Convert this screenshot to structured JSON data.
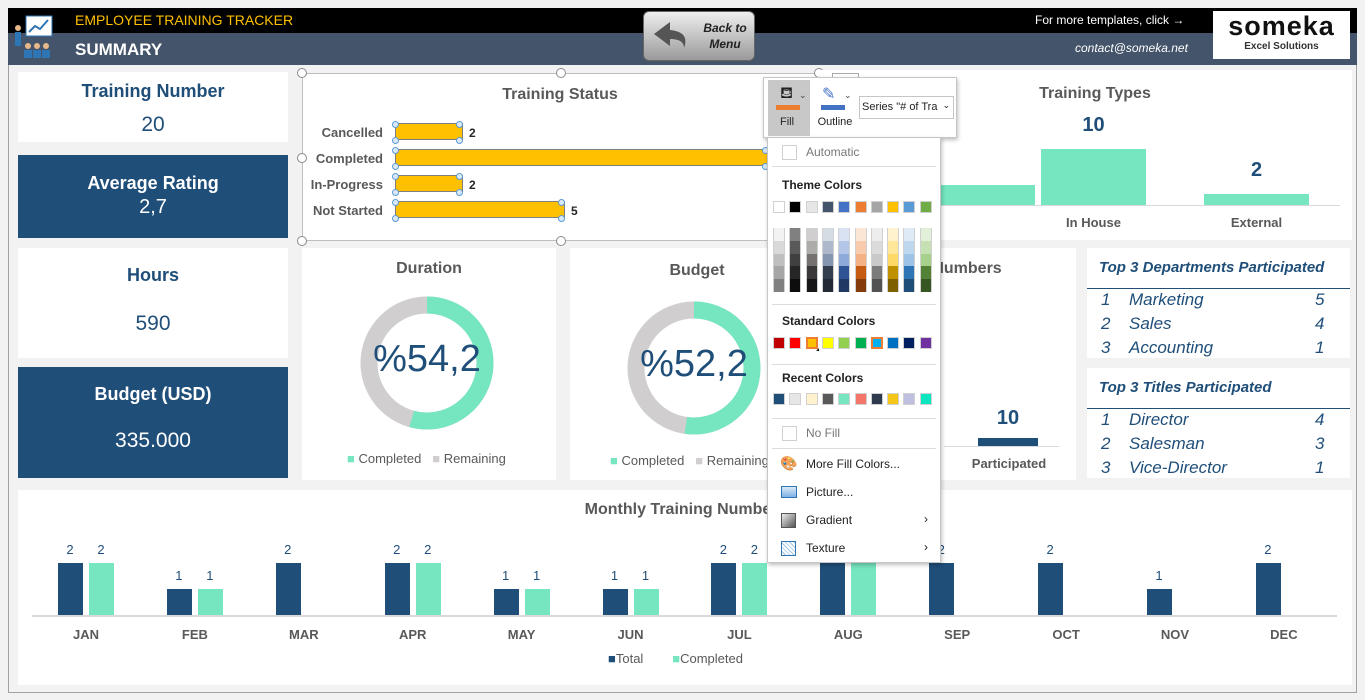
{
  "header": {
    "app_title": "EMPLOYEE TRAINING TRACKER",
    "page_title": "SUMMARY",
    "back_button": [
      "Back to",
      "Menu"
    ],
    "more_templates": "For more templates, click →",
    "contact": "contact@someka.net",
    "logo_text": "someka",
    "logo_sub": "Excel Solutions"
  },
  "kpis": {
    "training_number": {
      "label": "Training Number",
      "value": "20"
    },
    "average_rating": {
      "label": "Average Rating",
      "value": "2,7"
    },
    "hours": {
      "label": "Hours",
      "value": "590"
    },
    "budget": {
      "label": "Budget (USD)",
      "value": "335.000"
    }
  },
  "chart_data": [
    {
      "type": "bar",
      "orientation": "horizontal",
      "title": "Training Status",
      "categories": [
        "Cancelled",
        "Completed",
        "In-Progress",
        "Not Started"
      ],
      "values": [
        2,
        11,
        2,
        5
      ],
      "labels": [
        "2",
        "",
        "2",
        "5"
      ],
      "color": "#ffc000"
    },
    {
      "type": "bar",
      "title": "Training Types",
      "categories": [
        "",
        "In House",
        "External"
      ],
      "values": [
        null,
        10,
        2
      ],
      "labels": [
        "",
        "10",
        "2"
      ],
      "color": "#75e6bf"
    },
    {
      "type": "pie",
      "variant": "donut",
      "title": "Duration",
      "center_label": "%54,2",
      "values": [
        54.2,
        45.8
      ],
      "legend": [
        "Completed",
        "Remaining"
      ],
      "colors": [
        "#75e6bf",
        "#d0cece"
      ]
    },
    {
      "type": "pie",
      "variant": "donut",
      "title": "Budget",
      "center_label": "%52,2",
      "values": [
        52.2,
        47.8
      ],
      "legend": [
        "Completed",
        "Remaining"
      ],
      "colors": [
        "#75e6bf",
        "#d0cece"
      ]
    },
    {
      "type": "bar",
      "title": "e Numbers",
      "categories": [
        "Participated"
      ],
      "values": [
        10
      ],
      "labels": [
        "10"
      ],
      "color": "#1f4e79"
    },
    {
      "type": "bar",
      "title": "Monthly Training Numbe",
      "categories": [
        "JAN",
        "FEB",
        "MAR",
        "APR",
        "MAY",
        "JUN",
        "JUL",
        "AUG",
        "SEP",
        "OCT",
        "NOV",
        "DEC"
      ],
      "series": [
        {
          "name": "Total",
          "values": [
            2,
            1,
            2,
            2,
            1,
            1,
            2,
            2,
            2,
            2,
            1,
            2
          ],
          "labels": [
            "2",
            "1",
            "2",
            "2",
            "1",
            "1",
            "2",
            "",
            "2",
            "2",
            "1",
            "2"
          ],
          "color": "#1f4e79"
        },
        {
          "name": "Completed",
          "values": [
            2,
            1,
            0,
            2,
            1,
            1,
            2,
            2,
            0,
            0,
            0,
            0
          ],
          "labels": [
            "2",
            "1",
            "",
            "2",
            "1",
            "1",
            "2",
            "",
            "",
            "",
            "",
            ""
          ],
          "color": "#75e6bf"
        }
      ],
      "ylim": [
        0,
        2
      ],
      "legend": "bottom"
    }
  ],
  "top_departments": {
    "title": "Top 3 Departments Participated",
    "rows": [
      [
        "1",
        "Marketing",
        "5"
      ],
      [
        "2",
        "Sales",
        "4"
      ],
      [
        "3",
        "Accounting",
        "1"
      ]
    ]
  },
  "top_titles": {
    "title": "Top 3 Titles Participated",
    "rows": [
      [
        "1",
        "Director",
        "4"
      ],
      [
        "2",
        "Salesman",
        "3"
      ],
      [
        "3",
        "Vice-Director",
        "1"
      ]
    ]
  },
  "format_toolbar": {
    "fill": "Fill",
    "outline": "Outline",
    "series_select": "Series \"# of Tra",
    "fill_color": "#ed7d31",
    "outline_color": "#4472c4"
  },
  "fill_menu": {
    "automatic": "Automatic",
    "theme_colors": "Theme Colors",
    "standard_colors": "Standard Colors",
    "recent_colors": "Recent Colors",
    "no_fill": "No Fill",
    "more_fill_colors": "More Fill Colors...",
    "picture": "Picture...",
    "gradient": "Gradient",
    "texture": "Texture",
    "theme": [
      "#ffffff",
      "#000000",
      "#e7e6e6",
      "#44546a",
      "#4472c4",
      "#ed7d31",
      "#a5a5a5",
      "#ffc000",
      "#5b9bd5",
      "#70ad47"
    ],
    "shades": [
      [
        "#f2f2f2",
        "#d9d9d9",
        "#bfbfbf",
        "#a6a6a6",
        "#808080"
      ],
      [
        "#808080",
        "#595959",
        "#404040",
        "#262626",
        "#0d0d0d"
      ],
      [
        "#d0cece",
        "#aeabab",
        "#757171",
        "#3a3838",
        "#171616"
      ],
      [
        "#d6dce4",
        "#adb9ca",
        "#8496b0",
        "#333f4f",
        "#222a35"
      ],
      [
        "#d9e2f3",
        "#b4c6e7",
        "#8eaadb",
        "#2f5496",
        "#1f3864"
      ],
      [
        "#fbe5d5",
        "#f7cbac",
        "#f4b183",
        "#c55a11",
        "#843c0b"
      ],
      [
        "#ededed",
        "#dbdbdb",
        "#c9c9c9",
        "#7b7b7b",
        "#525252"
      ],
      [
        "#fff2cc",
        "#ffe699",
        "#ffd966",
        "#bf9000",
        "#7f6000"
      ],
      [
        "#deebf6",
        "#bdd7ee",
        "#9dc3e6",
        "#2e75b5",
        "#1f4e79"
      ],
      [
        "#e2efd9",
        "#c5e0b3",
        "#a8d08d",
        "#538135",
        "#375623"
      ]
    ],
    "standard": [
      "#c00000",
      "#ff0000",
      "#ffc000",
      "#ffff00",
      "#92d050",
      "#00b050",
      "#00b0f0",
      "#0070c0",
      "#002060",
      "#7030a0"
    ],
    "standard_selected": "#00b0f0",
    "standard_hover": "#ffc000",
    "recent": [
      "#1f4e79",
      "#e7e6e6",
      "#fff2cc",
      "#595959",
      "#75e6bf",
      "#f4756a",
      "#2f3a4f",
      "#f5c518",
      "#bfbfe0",
      "#0be6c0"
    ]
  }
}
